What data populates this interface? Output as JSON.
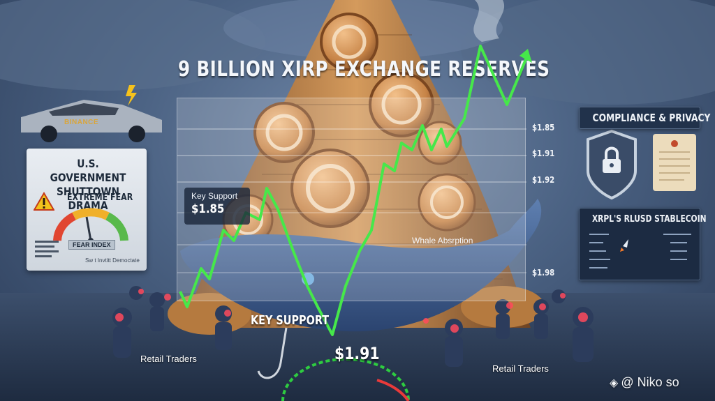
{
  "title": "9 BILLION XIRP EXCHANGE RESERVES",
  "car": {
    "brand": "BINANCE"
  },
  "shutdown_panel": {
    "title": "U.S. GOVERNMENT SHUTTOWN DRAMA",
    "sentiment": "EXTREME FEAR",
    "gauge_label": "FEAR INDEX",
    "footer": "Sw t Invtitt Democtate"
  },
  "compliance": {
    "title": "COMPLIANCE & PRIVACY"
  },
  "rlusd": {
    "title": "XRPL'S RLUSD STABLECOIN"
  },
  "chart": {
    "price_labels": [
      "$1.85",
      "$1.91",
      "$1.92",
      "$1.98"
    ],
    "line_color": "#46e84a"
  },
  "key_support_box": {
    "label": "Key Support",
    "value": "$1.85"
  },
  "whale_label": "Whale Absrption",
  "key_support_low": {
    "label": "KEY SUPPORT",
    "value": "$1.91"
  },
  "retail_left": "Retail Traders",
  "retail_right": "Retail Traders",
  "watermark": "@ Niko so"
}
